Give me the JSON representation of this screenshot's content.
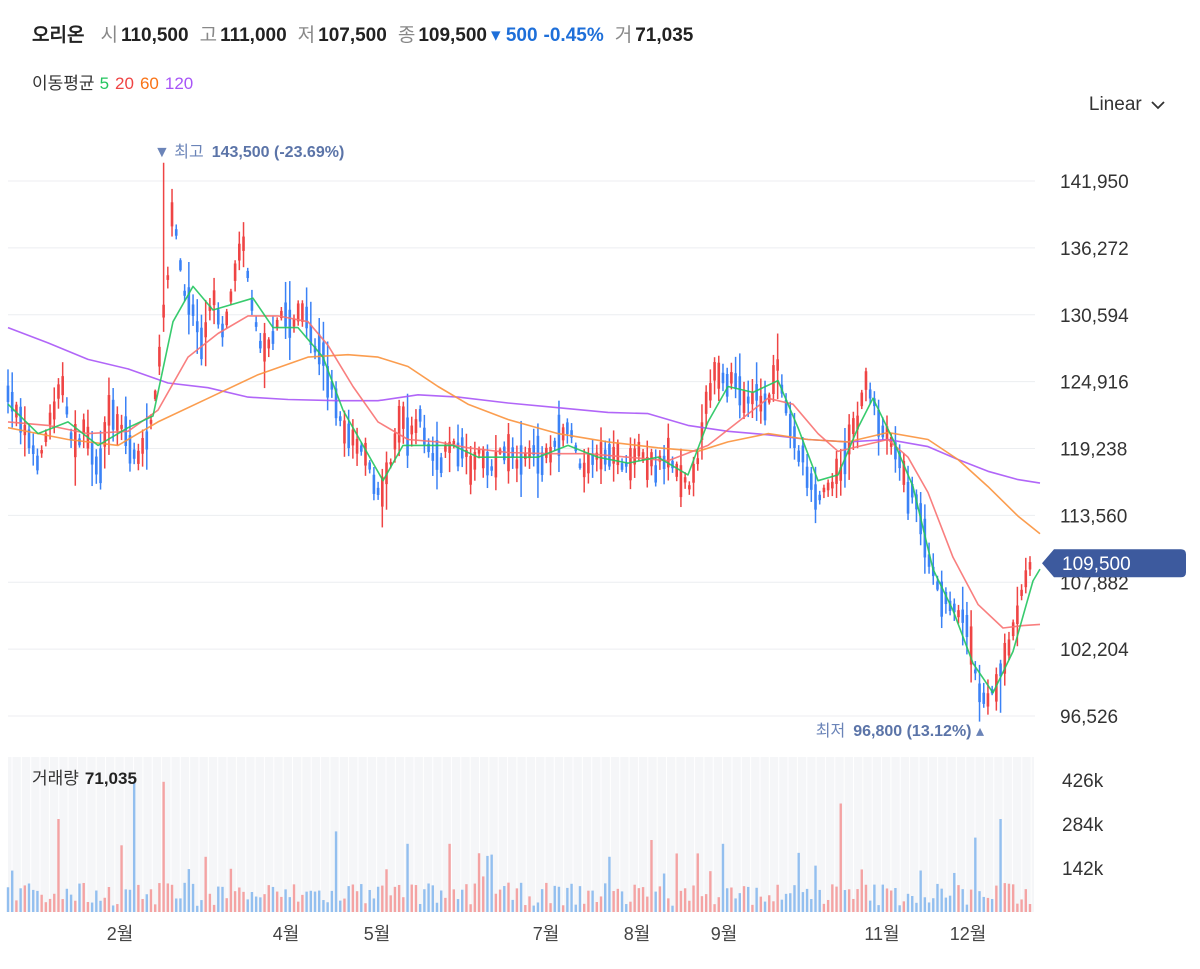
{
  "header": {
    "name": "오리온",
    "open_label": "시",
    "open": "110,500",
    "high_label": "고",
    "high": "111,000",
    "low_label": "저",
    "low": "107,500",
    "close_label": "종",
    "close": "109,500",
    "change": "▾ 500",
    "change_pct": "-0.45%",
    "volume_label": "거",
    "volume": "71,035"
  },
  "ma_legend": {
    "label": "이동평균",
    "p5": "5",
    "p20": "20",
    "p60": "60",
    "p120": "120"
  },
  "scale_toggle": {
    "label": "Linear",
    "icon": "chevron-down-icon"
  },
  "colors": {
    "up": "#ef4444",
    "down": "#3b82f6",
    "ma5": "#22c55e",
    "ma20": "#f87171",
    "ma60": "#fb923c",
    "ma120": "#a855f7",
    "price_tag": "#3d5a9e",
    "annot": "#6b84b8",
    "vol_up": "#f4a3a3",
    "vol_down": "#93bfef"
  },
  "chart_data": {
    "type": "candlestick",
    "price_axis": {
      "ticks": [
        "141,950",
        "136,272",
        "130,594",
        "124,916",
        "119,238",
        "113,560",
        "107,882",
        "102,204",
        "96,526"
      ],
      "ylim": [
        96526,
        141950
      ]
    },
    "x_ticks": [
      "2월",
      "4월",
      "5월",
      "7월",
      "8월",
      "9월",
      "11월",
      "12월"
    ],
    "current_price": "109,500",
    "high_annotation": {
      "label": "최고",
      "value": "143,500 (-23.69%)",
      "price": 143500
    },
    "low_annotation": {
      "label": "최저",
      "value": "96,800 (13.12%)",
      "price": 96800
    },
    "price_path": [
      [
        0,
        124000
      ],
      [
        15,
        121000
      ],
      [
        30,
        118000
      ],
      [
        45,
        122000
      ],
      [
        55,
        125000
      ],
      [
        65,
        119000
      ],
      [
        80,
        121000
      ],
      [
        90,
        117000
      ],
      [
        100,
        122000
      ],
      [
        115,
        121000
      ],
      [
        130,
        118000
      ],
      [
        145,
        122000
      ],
      [
        150,
        126000
      ],
      [
        160,
        134000
      ],
      [
        165,
        140000
      ],
      [
        175,
        133000
      ],
      [
        185,
        131000
      ],
      [
        195,
        128000
      ],
      [
        205,
        132000
      ],
      [
        215,
        129000
      ],
      [
        225,
        133000
      ],
      [
        235,
        137000
      ],
      [
        245,
        131000
      ],
      [
        255,
        127000
      ],
      [
        265,
        129000
      ],
      [
        275,
        131000
      ],
      [
        285,
        130000
      ],
      [
        295,
        131000
      ],
      [
        305,
        128000
      ],
      [
        315,
        127000
      ],
      [
        325,
        124000
      ],
      [
        335,
        121000
      ],
      [
        345,
        120000
      ],
      [
        355,
        119000
      ],
      [
        365,
        117000
      ],
      [
        372,
        115000
      ],
      [
        378,
        116000
      ],
      [
        385,
        119000
      ],
      [
        393,
        122000
      ],
      [
        402,
        120000
      ],
      [
        412,
        122000
      ],
      [
        422,
        119000
      ],
      [
        432,
        118000
      ],
      [
        442,
        120000
      ],
      [
        452,
        119000
      ],
      [
        462,
        118000
      ],
      [
        472,
        119000
      ],
      [
        482,
        117000
      ],
      [
        492,
        119000
      ],
      [
        502,
        119000
      ],
      [
        512,
        118000
      ],
      [
        522,
        119000
      ],
      [
        532,
        118000
      ],
      [
        542,
        119000
      ],
      [
        552,
        120000
      ],
      [
        562,
        121000
      ],
      [
        572,
        118000
      ],
      [
        582,
        118000
      ],
      [
        592,
        119000
      ],
      [
        602,
        119000
      ],
      [
        612,
        118000
      ],
      [
        622,
        118000
      ],
      [
        632,
        119000
      ],
      [
        642,
        118000
      ],
      [
        652,
        118000
      ],
      [
        662,
        118000
      ],
      [
        672,
        117000
      ],
      [
        682,
        116000
      ],
      [
        692,
        119000
      ],
      [
        700,
        124000
      ],
      [
        710,
        126000
      ],
      [
        720,
        125000
      ],
      [
        730,
        125000
      ],
      [
        740,
        123000
      ],
      [
        750,
        124000
      ],
      [
        760,
        123000
      ],
      [
        770,
        126000
      ],
      [
        780,
        122000
      ],
      [
        790,
        119000
      ],
      [
        800,
        117000
      ],
      [
        810,
        115000
      ],
      [
        820,
        116000
      ],
      [
        830,
        117000
      ],
      [
        840,
        119000
      ],
      [
        850,
        122000
      ],
      [
        858,
        125000
      ],
      [
        866,
        123000
      ],
      [
        874,
        121000
      ],
      [
        882,
        120000
      ],
      [
        892,
        118000
      ],
      [
        902,
        116000
      ],
      [
        912,
        113000
      ],
      [
        922,
        110000
      ],
      [
        932,
        107000
      ],
      [
        942,
        106000
      ],
      [
        952,
        105000
      ],
      [
        962,
        103000
      ],
      [
        970,
        99000
      ],
      [
        978,
        98000
      ],
      [
        986,
        99000
      ],
      [
        996,
        101000
      ],
      [
        1006,
        104000
      ],
      [
        1016,
        108000
      ],
      [
        1026,
        110000
      ],
      [
        1032,
        109500
      ]
    ],
    "ma5_path": [
      [
        0,
        123000
      ],
      [
        30,
        120500
      ],
      [
        60,
        121500
      ],
      [
        90,
        119500
      ],
      [
        120,
        121000
      ],
      [
        145,
        122000
      ],
      [
        165,
        130000
      ],
      [
        185,
        133000
      ],
      [
        205,
        131000
      ],
      [
        225,
        131500
      ],
      [
        245,
        132000
      ],
      [
        265,
        129500
      ],
      [
        290,
        129500
      ],
      [
        315,
        127000
      ],
      [
        335,
        122500
      ],
      [
        355,
        119500
      ],
      [
        375,
        116500
      ],
      [
        395,
        119500
      ],
      [
        420,
        119500
      ],
      [
        445,
        119500
      ],
      [
        470,
        118500
      ],
      [
        500,
        118500
      ],
      [
        530,
        118500
      ],
      [
        560,
        119500
      ],
      [
        590,
        118500
      ],
      [
        620,
        118000
      ],
      [
        650,
        118500
      ],
      [
        680,
        117000
      ],
      [
        700,
        121500
      ],
      [
        720,
        124500
      ],
      [
        745,
        124000
      ],
      [
        770,
        125000
      ],
      [
        790,
        121000
      ],
      [
        810,
        116500
      ],
      [
        830,
        117000
      ],
      [
        850,
        121000
      ],
      [
        865,
        123500
      ],
      [
        885,
        120000
      ],
      [
        905,
        116000
      ],
      [
        925,
        109000
      ],
      [
        945,
        105500
      ],
      [
        965,
        101000
      ],
      [
        985,
        98500
      ],
      [
        1005,
        102000
      ],
      [
        1025,
        108000
      ],
      [
        1032,
        109000
      ]
    ],
    "ma20_path": [
      [
        0,
        121500
      ],
      [
        40,
        121200
      ],
      [
        80,
        120500
      ],
      [
        120,
        120700
      ],
      [
        150,
        122500
      ],
      [
        180,
        127000
      ],
      [
        210,
        129000
      ],
      [
        240,
        130500
      ],
      [
        270,
        130500
      ],
      [
        300,
        130000
      ],
      [
        320,
        128000
      ],
      [
        345,
        124500
      ],
      [
        370,
        121500
      ],
      [
        400,
        120000
      ],
      [
        430,
        119800
      ],
      [
        460,
        119300
      ],
      [
        500,
        118900
      ],
      [
        540,
        118800
      ],
      [
        580,
        118800
      ],
      [
        620,
        118500
      ],
      [
        660,
        118200
      ],
      [
        700,
        119500
      ],
      [
        730,
        121500
      ],
      [
        760,
        123500
      ],
      [
        785,
        123000
      ],
      [
        810,
        120500
      ],
      [
        830,
        119000
      ],
      [
        855,
        119500
      ],
      [
        880,
        120000
      ],
      [
        900,
        118500
      ],
      [
        920,
        115500
      ],
      [
        945,
        110000
      ],
      [
        970,
        106000
      ],
      [
        995,
        104000
      ],
      [
        1015,
        104200
      ],
      [
        1032,
        104300
      ]
    ],
    "ma60_path": [
      [
        0,
        121000
      ],
      [
        60,
        120000
      ],
      [
        110,
        119500
      ],
      [
        150,
        121500
      ],
      [
        200,
        123500
      ],
      [
        250,
        125500
      ],
      [
        300,
        127000
      ],
      [
        340,
        127200
      ],
      [
        370,
        127000
      ],
      [
        400,
        126200
      ],
      [
        430,
        124500
      ],
      [
        460,
        123000
      ],
      [
        500,
        121700
      ],
      [
        550,
        120500
      ],
      [
        600,
        119800
      ],
      [
        650,
        119300
      ],
      [
        690,
        119000
      ],
      [
        720,
        119800
      ],
      [
        760,
        120500
      ],
      [
        800,
        120000
      ],
      [
        840,
        119800
      ],
      [
        880,
        120600
      ],
      [
        920,
        120000
      ],
      [
        950,
        118300
      ],
      [
        980,
        116000
      ],
      [
        1010,
        113500
      ],
      [
        1032,
        112000
      ]
    ],
    "ma120_path": [
      [
        0,
        129500
      ],
      [
        40,
        128200
      ],
      [
        80,
        126800
      ],
      [
        120,
        126000
      ],
      [
        160,
        124800
      ],
      [
        200,
        124400
      ],
      [
        240,
        123600
      ],
      [
        280,
        123400
      ],
      [
        330,
        123300
      ],
      [
        370,
        123300
      ],
      [
        410,
        123800
      ],
      [
        450,
        123600
      ],
      [
        500,
        123100
      ],
      [
        550,
        122700
      ],
      [
        600,
        122300
      ],
      [
        640,
        122200
      ],
      [
        680,
        121200
      ],
      [
        720,
        120700
      ],
      [
        760,
        120400
      ],
      [
        800,
        120000
      ],
      [
        840,
        119800
      ],
      [
        880,
        120000
      ],
      [
        920,
        119400
      ],
      [
        950,
        118300
      ],
      [
        980,
        117300
      ],
      [
        1010,
        116600
      ],
      [
        1032,
        116300
      ]
    ],
    "volume": {
      "label": "거래량",
      "last": "71,035",
      "ticks": [
        "426k",
        "284k",
        "142k"
      ],
      "ylim": [
        0,
        500000
      ]
    }
  }
}
